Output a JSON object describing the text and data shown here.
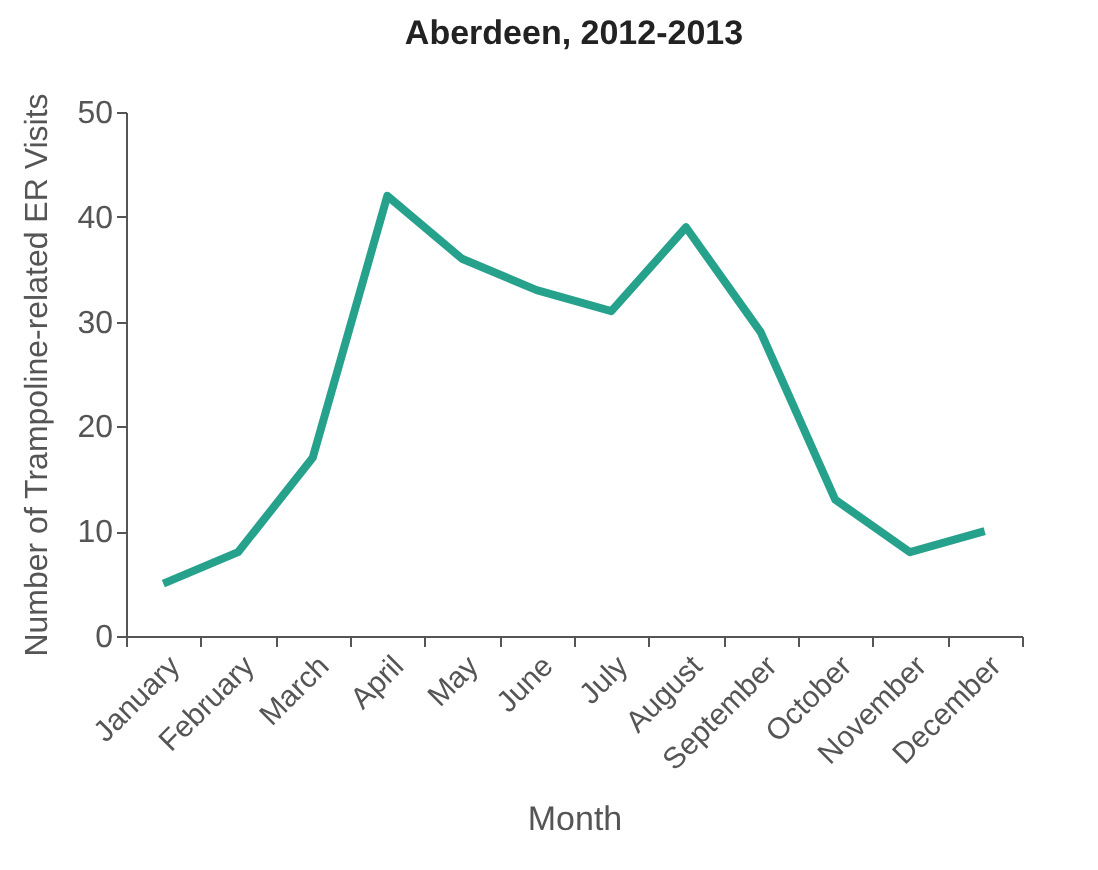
{
  "chart_data": {
    "type": "line",
    "title": "Aberdeen, 2012-2013",
    "xlabel": "Month",
    "ylabel": "Number of Trampoline-related ER Visits",
    "categories": [
      "January",
      "February",
      "March",
      "April",
      "May",
      "June",
      "July",
      "August",
      "September",
      "October",
      "November",
      "December"
    ],
    "series": [
      {
        "color": "#26a18b",
        "values": [
          5,
          8,
          17,
          42,
          36,
          33,
          31,
          39,
          29,
          13,
          8,
          10
        ]
      }
    ],
    "ylim": [
      0,
      50
    ],
    "yticks": [
      0,
      10,
      20,
      30,
      40,
      50
    ],
    "grid": false,
    "marker": "none"
  }
}
